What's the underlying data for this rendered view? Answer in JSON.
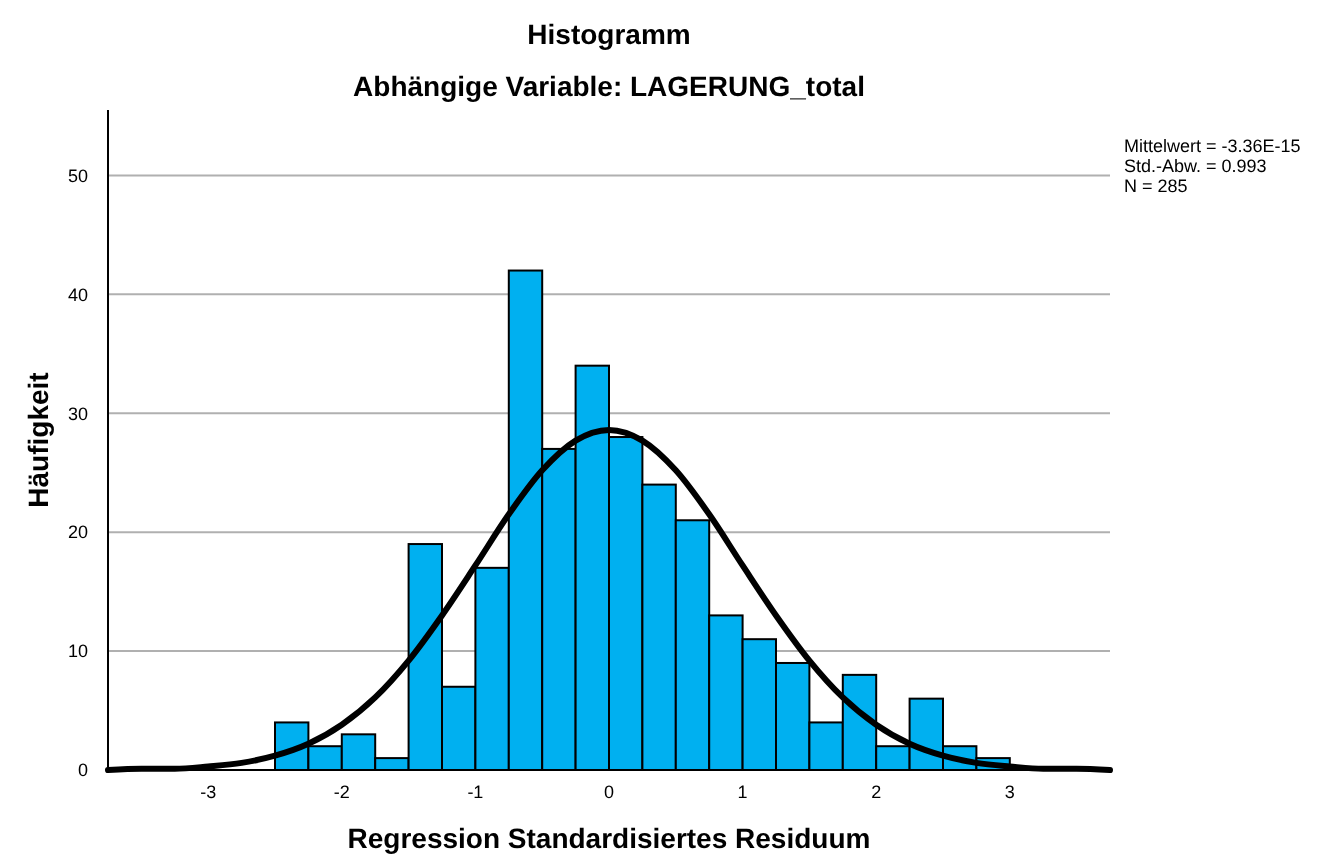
{
  "chart_data": {
    "type": "histogram",
    "title": "Histogramm",
    "subtitle": "Abhängige Variable: LAGERUNG_total",
    "xlabel": "Regression Standardisiertes Residuum",
    "ylabel": "Häufigkeit",
    "bins": [
      -2.5,
      -2.25,
      -2,
      -1.75,
      -1.5,
      -1.25,
      -1,
      -0.75,
      -0.5,
      -0.25,
      0,
      0.25,
      0.5,
      0.75,
      1,
      1.25,
      1.5,
      1.75,
      2,
      2.25,
      2.5,
      2.75,
      3
    ],
    "values": [
      4,
      2,
      3,
      1,
      19,
      7,
      17,
      42,
      27,
      34,
      28,
      24,
      21,
      13,
      11,
      9,
      4,
      8,
      2,
      6,
      2,
      1
    ],
    "color": "#00b0f0",
    "series": [
      {
        "type": "line",
        "color": "#000000",
        "x": [
          -3.75,
          -3.5,
          -3.25,
          -3,
          -2.75,
          -2.5,
          -2.25,
          -2,
          -1.75,
          -1.5,
          -1.25,
          -1,
          -0.75,
          -0.5,
          -0.25,
          0,
          0.25,
          0.5,
          0.75,
          1,
          1.25,
          1.5,
          1.75,
          2,
          2.25,
          2.5,
          2.75,
          3,
          3.25,
          3.5,
          3.75
        ],
        "values": [
          0,
          0.1,
          0.1,
          0.3,
          0.6,
          1.2,
          2.2,
          3.8,
          6.1,
          9.2,
          13,
          17.2,
          21.5,
          25.2,
          27.7,
          28.6,
          27.7,
          25.2,
          21.5,
          17.2,
          13,
          9.2,
          6.1,
          3.8,
          2.2,
          1.2,
          0.6,
          0.3,
          0.1,
          0.1,
          0
        ]
      }
    ],
    "xlim": [
      -3.75,
      3.75
    ],
    "xticks": [
      -3,
      -2,
      -1,
      0,
      1,
      2,
      3
    ],
    "ylim": [
      0,
      55.5
    ],
    "yticks": [
      0,
      10,
      20,
      30,
      40,
      50
    ],
    "grid": "y",
    "annotations": [
      "Mittelwert = -3.36E-15",
      "Std.-Abw. = 0.993",
      "N = 285"
    ]
  }
}
